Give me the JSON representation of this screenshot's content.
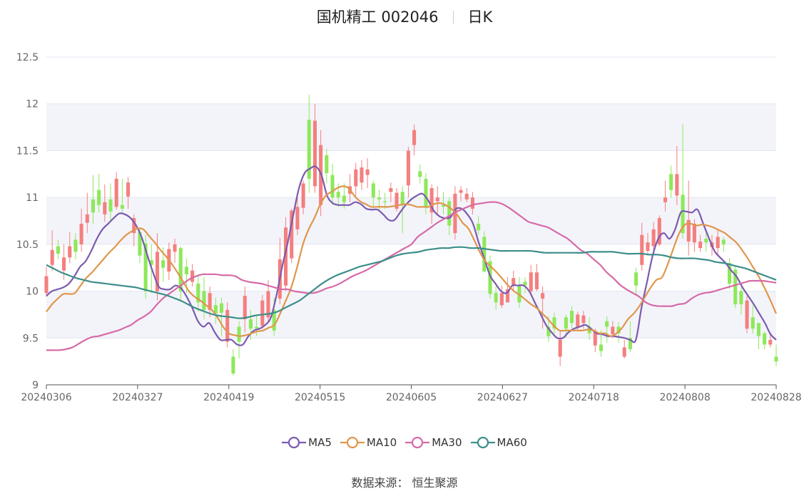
{
  "header": {
    "title": "国机精工 002046",
    "period": "日K"
  },
  "source": {
    "label": "数据来源：",
    "name": "恒生聚源"
  },
  "colors": {
    "up": "#f47f7f",
    "down": "#8ee85a",
    "MA5": "#7b5ab0",
    "MA10": "#e0964a",
    "MA30": "#d66aa7",
    "MA60": "#3d8e8a"
  },
  "chart_data": {
    "type": "candlestick",
    "y_ticks": [
      "9",
      "9.5",
      "10",
      "10.5",
      "11",
      "11.5",
      "12",
      "12.5"
    ],
    "ylim": [
      9,
      12.5
    ],
    "grid": true,
    "legend_position": "bottom-center",
    "x_tick_labels": [
      "20240306",
      "20240327",
      "20240419",
      "20240515",
      "20240605",
      "20240627",
      "20240718",
      "20240808",
      "20240828"
    ],
    "series": [
      {
        "name": "MA5",
        "values": [
          9.95,
          10.0,
          10.02,
          10.04,
          10.08,
          10.16,
          10.26,
          10.32,
          10.43,
          10.56,
          10.66,
          10.72,
          10.78,
          10.83,
          10.82,
          10.78,
          10.7,
          10.57,
          10.38,
          10.2,
          10.05,
          10.02,
          10.02,
          10.06,
          10.03,
          9.94,
          9.82,
          9.68,
          9.62,
          9.66,
          9.56,
          9.48,
          9.48,
          9.48,
          9.43,
          9.43,
          9.52,
          9.58,
          9.6,
          9.64,
          9.72,
          9.96,
          10.26,
          10.52,
          10.82,
          11.1,
          11.26,
          11.31,
          11.33,
          11.24,
          11.02,
          10.94,
          10.92,
          10.92,
          10.92,
          10.95,
          10.93,
          10.88,
          10.87,
          10.87,
          10.82,
          10.76,
          10.76,
          10.84,
          10.92,
          10.98,
          11.02,
          11.04,
          10.97,
          10.86,
          10.8,
          10.78,
          10.79,
          10.88,
          10.88,
          10.82,
          10.72,
          10.52,
          10.35,
          10.17,
          10.08,
          10.0,
          9.98,
          10.06,
          10.06,
          10.06,
          10.0,
          9.88,
          9.76,
          9.64,
          9.56,
          9.5,
          9.5,
          9.56,
          9.6,
          9.62,
          9.64,
          9.6,
          9.55,
          9.54,
          9.52,
          9.52,
          9.51,
          9.5,
          9.48,
          9.48,
          9.82,
          10.1,
          10.38,
          10.56,
          10.62,
          10.56,
          10.66,
          10.84,
          10.85,
          10.84,
          10.87,
          10.72,
          10.57,
          10.43,
          10.36,
          10.3,
          10.22,
          10.15,
          10.04,
          9.95,
          9.86,
          9.76,
          9.66,
          9.54,
          9.48
        ]
      },
      {
        "name": "MA10",
        "values": [
          9.78,
          9.86,
          9.92,
          9.97,
          9.97,
          9.98,
          10.06,
          10.14,
          10.2,
          10.27,
          10.34,
          10.41,
          10.47,
          10.54,
          10.6,
          10.64,
          10.67,
          10.66,
          10.59,
          10.52,
          10.44,
          10.37,
          10.29,
          10.2,
          10.1,
          10.0,
          9.94,
          9.9,
          9.85,
          9.8,
          9.72,
          9.62,
          9.55,
          9.53,
          9.52,
          9.53,
          9.55,
          9.57,
          9.58,
          9.61,
          9.64,
          9.76,
          9.9,
          10.05,
          10.26,
          10.5,
          10.66,
          10.78,
          10.92,
          11.02,
          11.06,
          11.1,
          11.12,
          11.1,
          11.02,
          10.96,
          10.93,
          10.9,
          10.9,
          10.9,
          10.9,
          10.91,
          10.92,
          10.93,
          10.92,
          10.9,
          10.9,
          10.9,
          10.93,
          10.94,
          10.92,
          10.88,
          10.82,
          10.73,
          10.67,
          10.55,
          10.42,
          10.32,
          10.26,
          10.2,
          10.13,
          10.06,
          10.0,
          9.96,
          9.91,
          9.86,
          9.82,
          9.76,
          9.7,
          9.63,
          9.58,
          9.58,
          9.58,
          9.58,
          9.58,
          9.59,
          9.58,
          9.55,
          9.55,
          9.52,
          9.55,
          9.61,
          9.7,
          9.76,
          9.84,
          9.94,
          10.04,
          10.12,
          10.15,
          10.29,
          10.46,
          10.62,
          10.71,
          10.72,
          10.7,
          10.71,
          10.7,
          10.68,
          10.65,
          10.62,
          10.57,
          10.52,
          10.44,
          10.35,
          10.25,
          10.15,
          10.03,
          9.9,
          9.76
        ]
      },
      {
        "name": "MA30",
        "values": [
          9.37,
          9.37,
          9.37,
          9.38,
          9.4,
          9.44,
          9.48,
          9.51,
          9.52,
          9.54,
          9.56,
          9.58,
          9.61,
          9.64,
          9.69,
          9.73,
          9.78,
          9.86,
          9.93,
          9.98,
          10.03,
          10.08,
          10.13,
          10.16,
          10.18,
          10.18,
          10.18,
          10.17,
          10.17,
          10.16,
          10.12,
          10.1,
          10.09,
          10.08,
          10.06,
          10.04,
          10.02,
          10.02,
          10.0,
          9.99,
          9.98,
          9.98,
          10.0,
          10.03,
          10.05,
          10.08,
          10.12,
          10.16,
          10.19,
          10.22,
          10.26,
          10.3,
          10.34,
          10.38,
          10.42,
          10.46,
          10.5,
          10.58,
          10.63,
          10.68,
          10.73,
          10.77,
          10.81,
          10.85,
          10.88,
          10.91,
          10.93,
          10.94,
          10.95,
          10.95,
          10.93,
          10.89,
          10.84,
          10.79,
          10.74,
          10.72,
          10.7,
          10.68,
          10.64,
          10.6,
          10.56,
          10.5,
          10.44,
          10.4,
          10.34,
          10.28,
          10.2,
          10.14,
          10.07,
          10.02,
          9.98,
          9.94,
          9.88,
          9.85,
          9.84,
          9.84,
          9.84,
          9.86,
          9.87,
          9.92,
          9.96,
          9.98,
          9.99,
          10.01,
          10.03,
          10.05,
          10.07,
          10.09,
          10.11,
          10.11,
          10.11,
          10.1,
          10.09
        ]
      },
      {
        "name": "MA60",
        "values": [
          10.28,
          10.24,
          10.2,
          10.17,
          10.14,
          10.12,
          10.1,
          10.09,
          10.08,
          10.07,
          10.06,
          10.05,
          10.04,
          10.02,
          10.0,
          9.98,
          9.96,
          9.93,
          9.9,
          9.86,
          9.82,
          9.79,
          9.76,
          9.74,
          9.73,
          9.72,
          9.71,
          9.72,
          9.74,
          9.75,
          9.76,
          9.78,
          9.82,
          9.86,
          9.9,
          9.96,
          10.02,
          10.08,
          10.13,
          10.17,
          10.2,
          10.23,
          10.26,
          10.28,
          10.3,
          10.32,
          10.35,
          10.38,
          10.4,
          10.41,
          10.42,
          10.44,
          10.45,
          10.46,
          10.46,
          10.47,
          10.47,
          10.46,
          10.46,
          10.45,
          10.44,
          10.43,
          10.43,
          10.43,
          10.43,
          10.43,
          10.42,
          10.41,
          10.41,
          10.41,
          10.41,
          10.41,
          10.41,
          10.42,
          10.42,
          10.42,
          10.42,
          10.41,
          10.4,
          10.4,
          10.4,
          10.39,
          10.39,
          10.38,
          10.36,
          10.35,
          10.35,
          10.35,
          10.34,
          10.33,
          10.31,
          10.3,
          10.28,
          10.26,
          10.24,
          10.21,
          10.18,
          10.15,
          10.12
        ]
      }
    ],
    "candles": {
      "dir": "u,u,d,u,u,d,u,u,d,d,u,d,u,d,u,u,d,d,d,u,d,u,u,d,d,u,d,d,u,d,d,u,d,d,u,d,d,u,u,d,u,u,u,u,u,d,u,u,d,d,d,d,u,u,u,u,d,d,d,u,u,d,u,u,d,d,u,u,d,d,u,u,u,u,d,d,d,d,u,u,u,d,d,u,u,u,d,d,u,d,d,u,u,d,u,d,d,u,d,u,d,d,u,u,u,u,u,d,u,d,u,u,u,d,u,u,d,d,d,d,u,d,d,d,u,d,u,d,d,d,u",
      "open": [
        9.98,
        10.28,
        10.48,
        10.22,
        10.36,
        10.55,
        10.5,
        10.73,
        10.98,
        11.08,
        10.82,
        10.98,
        10.9,
        10.92,
        11.16,
        10.78,
        10.63,
        10.51,
        10.33,
        10.0,
        10.33,
        10.21,
        10.42,
        10.46,
        10.26,
        10.1,
        10.08,
        10.0,
        9.8,
        9.85,
        9.87,
        9.46,
        9.3,
        9.62,
        9.7,
        9.7,
        9.62,
        9.63,
        9.72,
        9.58,
        9.92,
        10.06,
        10.35,
        10.66,
        10.89,
        11.2,
        11.12,
        11.56,
        11.45,
        11.24,
        11.06,
        11.02,
        11.04,
        11.12,
        11.16,
        11.24,
        11.15,
        10.98,
        10.96,
        11.06,
        10.88,
        11.06,
        11.13,
        11.56,
        11.22,
        11.2,
        10.84,
        10.96,
        10.9,
        10.96,
        10.62,
        11.05,
        10.98,
        10.88,
        10.72,
        10.58,
        10.32,
        9.98,
        9.85,
        9.88,
        10.06,
        10.06,
        10.1,
        10.0,
        10.02,
        9.92,
        9.62,
        9.6,
        9.48,
        9.6,
        9.66,
        9.75,
        9.74,
        9.62,
        9.56,
        9.43,
        9.62,
        9.62,
        9.55,
        9.4,
        9.38,
        10.06,
        10.28,
        10.43,
        10.48,
        10.5,
        10.95,
        11.25,
        11.02,
        10.62,
        10.53,
        10.72,
        10.46,
        10.52,
        10.52,
        10.46,
        10.55,
        10.3,
        10.23,
        10.0,
        9.9,
        9.72,
        9.66,
        9.55,
        9.43,
        9.3
      ],
      "close": [
        10.16,
        10.44,
        10.4,
        10.36,
        10.48,
        10.42,
        10.72,
        10.82,
        10.84,
        10.92,
        10.95,
        10.85,
        11.2,
        10.88,
        11.01,
        10.62,
        10.38,
        10.0,
        10.28,
        10.42,
        10.25,
        10.45,
        10.5,
        10.0,
        10.18,
        10.22,
        9.88,
        9.8,
        9.98,
        9.76,
        9.77,
        9.8,
        9.12,
        9.46,
        9.95,
        9.6,
        9.6,
        9.9,
        10.0,
        9.8,
        10.34,
        10.68,
        10.86,
        10.9,
        11.15,
        11.83,
        11.82,
        10.92,
        11.26,
        11.0,
        11.0,
        10.95,
        11.12,
        11.3,
        11.32,
        11.3,
        11.0,
        11.0,
        10.95,
        11.1,
        11.05,
        10.92,
        11.5,
        11.72,
        11.28,
        10.9,
        11.1,
        11.0,
        10.92,
        10.7,
        11.04,
        11.08,
        11.04,
        11.0,
        10.65,
        10.21,
        9.97,
        9.88,
        9.98,
        10.02,
        10.14,
        9.88,
        10.06,
        10.2,
        10.2,
        9.98,
        9.52,
        9.72,
        9.3,
        9.72,
        9.79,
        9.62,
        9.66,
        9.55,
        9.42,
        9.36,
        9.68,
        9.54,
        9.62,
        9.3,
        9.5,
        10.2,
        10.6,
        10.52,
        10.66,
        10.78,
        11.0,
        11.08,
        11.25,
        11.03,
        10.76,
        10.52,
        10.53,
        10.56,
        10.47,
        10.58,
        10.5,
        10.08,
        9.86,
        9.86,
        9.6,
        9.6,
        9.52,
        9.43,
        9.48,
        9.25
      ],
      "high": [
        10.26,
        10.65,
        10.55,
        10.5,
        10.63,
        10.62,
        10.88,
        11.05,
        11.24,
        11.25,
        11.14,
        11.15,
        11.27,
        11.2,
        11.22,
        10.82,
        10.68,
        10.6,
        10.5,
        10.62,
        10.47,
        10.52,
        10.56,
        10.48,
        10.35,
        10.29,
        10.18,
        10.15,
        10.05,
        9.93,
        9.93,
        9.88,
        9.38,
        9.68,
        10.05,
        9.8,
        9.74,
        9.96,
        10.12,
        9.93,
        10.57,
        10.79,
        10.88,
        11.05,
        11.18,
        12.1,
        12.0,
        11.72,
        11.52,
        11.36,
        11.15,
        11.15,
        11.25,
        11.37,
        11.4,
        11.42,
        11.18,
        11.08,
        11.05,
        11.16,
        11.1,
        11.12,
        11.54,
        11.78,
        11.35,
        11.26,
        11.14,
        11.12,
        11.06,
        11.0,
        11.12,
        11.12,
        11.1,
        11.06,
        10.8,
        10.64,
        10.38,
        10.05,
        10.06,
        10.15,
        10.22,
        10.15,
        10.15,
        10.28,
        10.29,
        10.05,
        9.73,
        9.77,
        9.58,
        9.75,
        9.84,
        9.78,
        9.79,
        9.72,
        9.6,
        9.58,
        9.73,
        9.68,
        9.67,
        9.48,
        9.68,
        10.25,
        10.73,
        10.62,
        10.74,
        10.81,
        11.18,
        11.34,
        11.55,
        11.78,
        11.18,
        10.77,
        10.6,
        10.63,
        10.6,
        10.66,
        10.58,
        10.35,
        10.27,
        10.04,
        9.95,
        9.85,
        9.62,
        9.57,
        9.55,
        9.43
      ],
      "low": [
        9.94,
        10.22,
        10.34,
        10.12,
        10.3,
        10.34,
        10.42,
        10.62,
        10.72,
        10.84,
        10.74,
        10.74,
        10.87,
        10.84,
        10.88,
        10.48,
        10.3,
        9.92,
        9.98,
        9.9,
        10.1,
        10.12,
        10.3,
        9.9,
        9.98,
        10.05,
        9.78,
        9.7,
        9.72,
        9.65,
        9.52,
        9.4,
        9.1,
        9.28,
        9.56,
        9.48,
        9.52,
        9.6,
        9.68,
        9.52,
        9.86,
        10.0,
        10.3,
        10.6,
        10.82,
        11.05,
        11.05,
        10.8,
        11.15,
        10.92,
        10.9,
        10.88,
        10.95,
        11.0,
        11.08,
        11.1,
        10.9,
        10.85,
        10.88,
        10.95,
        10.85,
        10.62,
        11.0,
        11.45,
        11.15,
        10.82,
        10.72,
        10.82,
        10.82,
        10.6,
        10.55,
        10.96,
        10.95,
        10.82,
        10.6,
        10.2,
        9.92,
        9.8,
        9.82,
        9.92,
        10.0,
        9.82,
        9.98,
        9.95,
        10.0,
        9.6,
        9.46,
        9.55,
        9.2,
        9.5,
        9.6,
        9.58,
        9.6,
        9.48,
        9.35,
        9.3,
        9.45,
        9.5,
        9.45,
        9.28,
        9.35,
        9.95,
        10.22,
        10.38,
        10.42,
        10.48,
        10.85,
        11.0,
        10.92,
        10.56,
        10.38,
        10.42,
        10.42,
        10.42,
        10.38,
        10.38,
        10.42,
        10.02,
        9.82,
        9.75,
        9.55,
        9.55,
        9.38,
        9.38,
        9.4,
        9.2
      ]
    },
    "xlabel": "",
    "ylabel": ""
  }
}
